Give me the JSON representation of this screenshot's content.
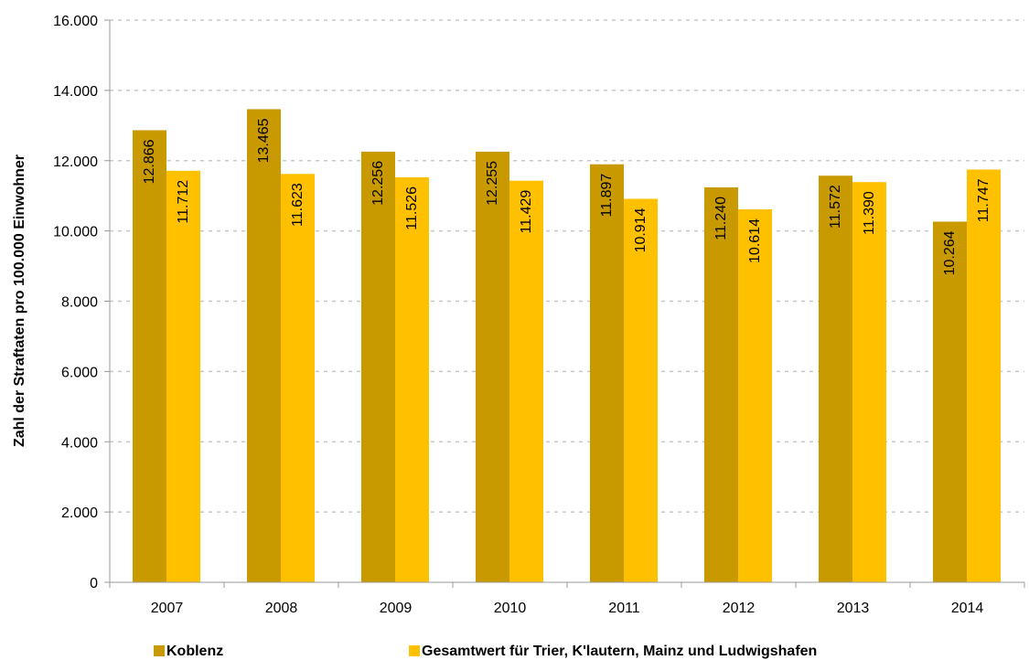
{
  "chart_data": {
    "type": "bar",
    "title": "",
    "xlabel": "",
    "ylabel": "Zahl der Straftaten pro 100.000 Einwohner",
    "categories": [
      "2007",
      "2008",
      "2009",
      "2010",
      "2011",
      "2012",
      "2013",
      "2014"
    ],
    "series": [
      {
        "name": "Koblenz",
        "color": "#C99A00",
        "values": [
          12866,
          13465,
          12256,
          12255,
          11897,
          11240,
          11572,
          10264
        ],
        "labels": [
          "12.866",
          "13.465",
          "12.256",
          "12.255",
          "11.897",
          "11.240",
          "11.572",
          "10.264"
        ]
      },
      {
        "name": "Gesamtwert für Trier, K'lautern, Mainz und Ludwigshafen",
        "color": "#FFC000",
        "values": [
          11712,
          11623,
          11526,
          11429,
          10914,
          10614,
          11390,
          11747
        ],
        "labels": [
          "11.712",
          "11.623",
          "11.526",
          "11.429",
          "10.914",
          "10.614",
          "11.390",
          "11.747"
        ]
      }
    ],
    "ylim": [
      0,
      16000
    ],
    "yticks": [
      0,
      2000,
      4000,
      6000,
      8000,
      10000,
      12000,
      14000,
      16000
    ],
    "ytick_labels": [
      "0",
      "2.000",
      "4.000",
      "6.000",
      "8.000",
      "10.000",
      "12.000",
      "14.000",
      "16.000"
    ],
    "grid": true,
    "legend_position": "bottom"
  }
}
